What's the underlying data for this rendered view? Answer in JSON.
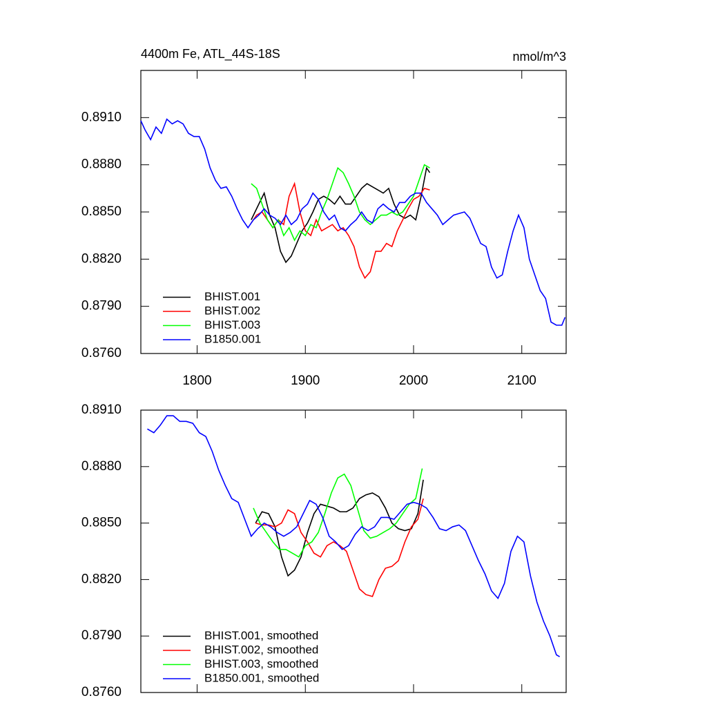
{
  "chart_data": [
    {
      "type": "line",
      "title": "4400m Fe, ATL_44S-18S",
      "subtitle": "nmol/m^3",
      "xlim": [
        1748,
        2141
      ],
      "xticks": [
        1800,
        1900,
        2000,
        2100
      ],
      "ylim": [
        0.876,
        0.894
      ],
      "yticks": [
        {
          "value": 0.876,
          "label": "0.8760"
        },
        {
          "value": 0.879,
          "label": "0.8790"
        },
        {
          "value": 0.882,
          "label": "0.8820"
        },
        {
          "value": 0.885,
          "label": "0.8850"
        },
        {
          "value": 0.888,
          "label": "0.8880"
        },
        {
          "value": 0.891,
          "label": "0.8910"
        }
      ],
      "legend": "lower left",
      "series": [
        {
          "name": "BHIST.001",
          "color": "#000000",
          "x": [
            1850,
            1857,
            1862,
            1867,
            1872,
            1877,
            1882,
            1887,
            1892,
            1897,
            1902,
            1907,
            1912,
            1917,
            1922,
            1927,
            1932,
            1937,
            1942,
            1947,
            1952,
            1957,
            1962,
            1967,
            1972,
            1977,
            1982,
            1987,
            1992,
            1997,
            2002,
            2007,
            2012,
            2015
          ],
          "values": [
            0.8845,
            0.8855,
            0.8862,
            0.8848,
            0.884,
            0.8825,
            0.8818,
            0.8822,
            0.883,
            0.8838,
            0.8843,
            0.885,
            0.8858,
            0.886,
            0.8858,
            0.8855,
            0.886,
            0.8855,
            0.8855,
            0.886,
            0.8865,
            0.8868,
            0.8866,
            0.8864,
            0.8862,
            0.8865,
            0.8855,
            0.8848,
            0.8846,
            0.8848,
            0.8845,
            0.886,
            0.8878,
            0.8875
          ]
        },
        {
          "name": "BHIST.002",
          "color": "#ff0000",
          "x": [
            1850,
            1855,
            1860,
            1865,
            1870,
            1875,
            1880,
            1885,
            1890,
            1895,
            1900,
            1905,
            1910,
            1915,
            1920,
            1925,
            1930,
            1935,
            1940,
            1945,
            1950,
            1955,
            1960,
            1965,
            1970,
            1975,
            1980,
            1985,
            1990,
            1995,
            2000,
            2005,
            2010,
            2015
          ],
          "values": [
            0.8843,
            0.8848,
            0.885,
            0.8845,
            0.884,
            0.8845,
            0.8842,
            0.886,
            0.8868,
            0.885,
            0.8838,
            0.8835,
            0.8845,
            0.8838,
            0.884,
            0.8842,
            0.8838,
            0.884,
            0.8835,
            0.8828,
            0.8815,
            0.8808,
            0.8812,
            0.8825,
            0.8825,
            0.883,
            0.8828,
            0.8838,
            0.8845,
            0.8852,
            0.8858,
            0.886,
            0.8865,
            0.8864
          ]
        },
        {
          "name": "BHIST.003",
          "color": "#00ff00",
          "x": [
            1850,
            1855,
            1860,
            1865,
            1870,
            1875,
            1880,
            1885,
            1890,
            1895,
            1900,
            1905,
            1910,
            1915,
            1920,
            1925,
            1930,
            1935,
            1940,
            1945,
            1950,
            1955,
            1960,
            1965,
            1970,
            1975,
            1980,
            1985,
            1990,
            1995,
            2000,
            2005,
            2010,
            2015
          ],
          "values": [
            0.8868,
            0.8865,
            0.8855,
            0.8845,
            0.884,
            0.8845,
            0.8835,
            0.884,
            0.8832,
            0.8838,
            0.8835,
            0.8842,
            0.884,
            0.885,
            0.8858,
            0.8868,
            0.8878,
            0.8875,
            0.8868,
            0.886,
            0.885,
            0.8845,
            0.8842,
            0.8845,
            0.8848,
            0.8848,
            0.885,
            0.8848,
            0.885,
            0.8855,
            0.886,
            0.887,
            0.888,
            0.8878
          ]
        },
        {
          "name": "B1850.001",
          "color": "#0000ff",
          "x": [
            1748,
            1752,
            1757,
            1762,
            1767,
            1772,
            1777,
            1782,
            1787,
            1792,
            1797,
            1802,
            1807,
            1812,
            1817,
            1822,
            1827,
            1832,
            1837,
            1842,
            1847,
            1852,
            1857,
            1862,
            1867,
            1872,
            1877,
            1882,
            1887,
            1892,
            1897,
            1902,
            1907,
            1912,
            1917,
            1922,
            1927,
            1932,
            1937,
            1942,
            1947,
            1952,
            1957,
            1962,
            1967,
            1972,
            1977,
            1982,
            1987,
            1992,
            1997,
            2002,
            2007,
            2012,
            2017,
            2022,
            2027,
            2032,
            2037,
            2042,
            2047,
            2052,
            2057,
            2062,
            2067,
            2072,
            2077,
            2082,
            2087,
            2092,
            2097,
            2102,
            2107,
            2112,
            2117,
            2122,
            2127,
            2132,
            2137,
            2140
          ],
          "values": [
            0.8908,
            0.8902,
            0.8896,
            0.8904,
            0.89,
            0.8909,
            0.8906,
            0.8908,
            0.8906,
            0.89,
            0.8898,
            0.8898,
            0.889,
            0.8878,
            0.887,
            0.8865,
            0.8866,
            0.886,
            0.8852,
            0.8845,
            0.884,
            0.8845,
            0.8848,
            0.8852,
            0.8848,
            0.8846,
            0.8842,
            0.8848,
            0.8842,
            0.8845,
            0.8852,
            0.8855,
            0.8862,
            0.8858,
            0.885,
            0.8845,
            0.8848,
            0.884,
            0.8838,
            0.8842,
            0.8845,
            0.885,
            0.8845,
            0.8843,
            0.8852,
            0.8855,
            0.8852,
            0.885,
            0.8856,
            0.8856,
            0.886,
            0.8862,
            0.8862,
            0.8856,
            0.8852,
            0.8848,
            0.8842,
            0.8845,
            0.8848,
            0.8849,
            0.885,
            0.8846,
            0.8838,
            0.883,
            0.8828,
            0.8815,
            0.8808,
            0.881,
            0.8825,
            0.8838,
            0.8848,
            0.884,
            0.882,
            0.881,
            0.88,
            0.8795,
            0.878,
            0.8778,
            0.8778,
            0.8783
          ]
        }
      ]
    },
    {
      "type": "line",
      "xlim": [
        1748,
        2141
      ],
      "ylim": [
        0.876,
        0.891
      ],
      "yticks": [
        {
          "value": 0.876,
          "label": "0.8760"
        },
        {
          "value": 0.879,
          "label": "0.8790"
        },
        {
          "value": 0.882,
          "label": "0.8820"
        },
        {
          "value": 0.885,
          "label": "0.8850"
        },
        {
          "value": 0.888,
          "label": "0.8880"
        },
        {
          "value": 0.891,
          "label": "0.8910"
        }
      ],
      "legend": "lower left",
      "series": [
        {
          "name": "BHIST.001, smoothed",
          "color": "#000000",
          "x": [
            1854,
            1860,
            1866,
            1872,
            1878,
            1884,
            1890,
            1896,
            1902,
            1908,
            1914,
            1920,
            1926,
            1932,
            1938,
            1944,
            1950,
            1956,
            1962,
            1968,
            1974,
            1980,
            1986,
            1992,
            1998,
            2004,
            2009
          ],
          "values": [
            0.885,
            0.8856,
            0.8855,
            0.8848,
            0.8832,
            0.8822,
            0.8825,
            0.8832,
            0.8845,
            0.8855,
            0.886,
            0.8859,
            0.8858,
            0.8856,
            0.8856,
            0.8858,
            0.8863,
            0.8865,
            0.8866,
            0.8864,
            0.8858,
            0.885,
            0.8847,
            0.8846,
            0.8847,
            0.8855,
            0.8873
          ]
        },
        {
          "name": "BHIST.002, smoothed",
          "color": "#ff0000",
          "x": [
            1854,
            1860,
            1866,
            1872,
            1878,
            1884,
            1890,
            1896,
            1902,
            1908,
            1914,
            1920,
            1926,
            1932,
            1938,
            1944,
            1950,
            1956,
            1962,
            1968,
            1974,
            1980,
            1986,
            1992,
            1998,
            2004,
            2009
          ],
          "values": [
            0.885,
            0.8849,
            0.8849,
            0.8848,
            0.885,
            0.8857,
            0.8855,
            0.8845,
            0.884,
            0.8834,
            0.8832,
            0.8838,
            0.884,
            0.8838,
            0.8835,
            0.8825,
            0.8815,
            0.8812,
            0.8811,
            0.882,
            0.8826,
            0.8827,
            0.883,
            0.884,
            0.8848,
            0.8852,
            0.8863
          ]
        },
        {
          "name": "BHIST.003, smoothed",
          "color": "#00ff00",
          "x": [
            1852,
            1858,
            1864,
            1870,
            1876,
            1882,
            1888,
            1894,
            1900,
            1906,
            1912,
            1918,
            1924,
            1930,
            1936,
            1942,
            1948,
            1954,
            1960,
            1966,
            1972,
            1978,
            1984,
            1990,
            1996,
            2002,
            2008
          ],
          "values": [
            0.8858,
            0.885,
            0.8845,
            0.884,
            0.8836,
            0.8836,
            0.8834,
            0.8832,
            0.8838,
            0.884,
            0.8845,
            0.8855,
            0.8866,
            0.8874,
            0.8876,
            0.887,
            0.8858,
            0.8846,
            0.8842,
            0.8843,
            0.8845,
            0.8847,
            0.885,
            0.8855,
            0.886,
            0.8863,
            0.8879
          ]
        },
        {
          "name": "B1850.001, smoothed",
          "color": "#0000ff",
          "x": [
            1754,
            1760,
            1766,
            1772,
            1778,
            1784,
            1790,
            1796,
            1802,
            1808,
            1814,
            1820,
            1826,
            1832,
            1838,
            1844,
            1850,
            1856,
            1862,
            1868,
            1874,
            1880,
            1886,
            1892,
            1898,
            1904,
            1910,
            1916,
            1922,
            1928,
            1934,
            1940,
            1946,
            1952,
            1958,
            1964,
            1970,
            1976,
            1982,
            1988,
            1994,
            2000,
            2006,
            2012,
            2018,
            2024,
            2030,
            2036,
            2042,
            2048,
            2054,
            2060,
            2066,
            2072,
            2078,
            2084,
            2090,
            2096,
            2102,
            2108,
            2114,
            2120,
            2126,
            2132,
            2135
          ],
          "values": [
            0.89,
            0.8898,
            0.8902,
            0.8907,
            0.8907,
            0.8904,
            0.8904,
            0.8903,
            0.8898,
            0.8896,
            0.8888,
            0.8878,
            0.887,
            0.8863,
            0.8861,
            0.8852,
            0.8843,
            0.8847,
            0.885,
            0.8848,
            0.8845,
            0.8843,
            0.8845,
            0.8848,
            0.8855,
            0.8862,
            0.886,
            0.8853,
            0.8843,
            0.884,
            0.8836,
            0.8838,
            0.8844,
            0.8848,
            0.8846,
            0.8848,
            0.8853,
            0.8853,
            0.8852,
            0.8856,
            0.886,
            0.8861,
            0.886,
            0.8858,
            0.8853,
            0.8847,
            0.8846,
            0.8848,
            0.8849,
            0.8846,
            0.8838,
            0.883,
            0.8823,
            0.8814,
            0.881,
            0.8818,
            0.8835,
            0.8843,
            0.884,
            0.8822,
            0.8808,
            0.8798,
            0.879,
            0.878,
            0.8779
          ]
        }
      ]
    }
  ]
}
